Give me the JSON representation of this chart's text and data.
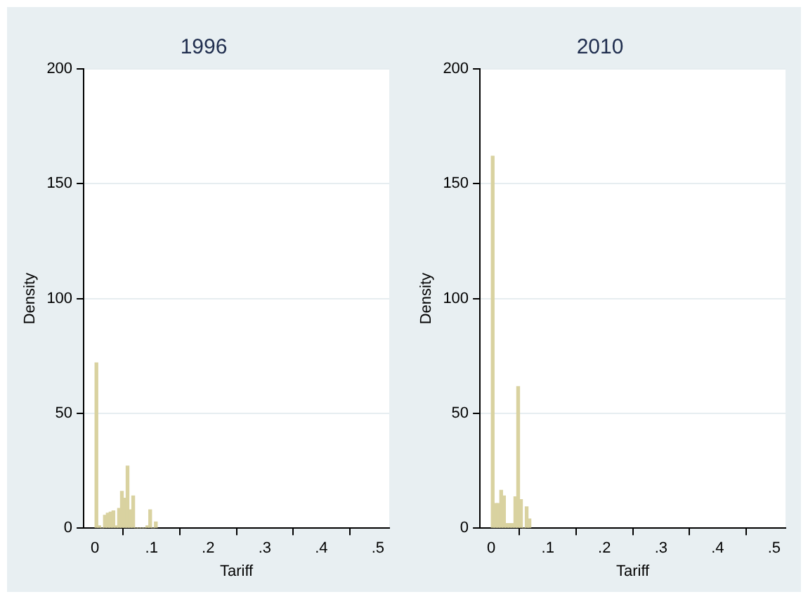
{
  "chart_data": [
    {
      "type": "histogram",
      "title": "1996",
      "xlabel": "Tariff",
      "ylabel": "Density",
      "color": "#d9d2a0",
      "bins": [
        0,
        0.005,
        0.01,
        0.015,
        0.02,
        0.025,
        0.03,
        0.035,
        0.04,
        0.045,
        0.05,
        0.055,
        0.06,
        0.065,
        0.07,
        0.075,
        0.08,
        0.085,
        0.09,
        0.095,
        0.1,
        0.105,
        0.11
      ],
      "values": [
        72,
        1,
        0,
        5.6,
        6.5,
        7,
        7.5,
        1,
        8.6,
        16,
        13,
        27,
        8,
        14,
        0,
        0,
        0,
        0,
        1,
        8,
        0,
        2.7
      ],
      "xlim": [
        -0.02,
        0.52
      ],
      "xticks": [
        0,
        {
          "value": 0.1,
          "label": ".1"
        },
        {
          "value": 0.2,
          "label": ".2"
        },
        {
          "value": 0.3,
          "label": ".3"
        },
        {
          "value": 0.4,
          "label": ".4"
        },
        {
          "value": 0.5,
          "label": ".5"
        }
      ],
      "ylim": [
        0,
        200
      ],
      "yticks": [
        0,
        50,
        100,
        150,
        200
      ],
      "grid": "y",
      "legend": false
    },
    {
      "type": "histogram",
      "title": "2010",
      "xlabel": "Tariff",
      "ylabel": "Density",
      "color": "#d9d2a0",
      "bins": [
        0,
        0.005,
        0.01,
        0.015,
        0.02,
        0.025,
        0.03,
        0.035,
        0.04,
        0.045,
        0.05,
        0.055,
        0.06,
        0.065,
        0.07
      ],
      "values": [
        162,
        10.7,
        10.7,
        16.5,
        14,
        2,
        2,
        2,
        13.6,
        61.6,
        12.4,
        0,
        9.3,
        4
      ],
      "xlim": [
        -0.02,
        0.52
      ],
      "xticks": [
        0,
        {
          "value": 0.1,
          "label": ".1"
        },
        {
          "value": 0.2,
          "label": ".2"
        },
        {
          "value": 0.3,
          "label": ".3"
        },
        {
          "value": 0.4,
          "label": ".4"
        },
        {
          "value": 0.5,
          "label": ".5"
        }
      ],
      "ylim": [
        0,
        200
      ],
      "yticks": [
        0,
        50,
        100,
        150,
        200
      ],
      "grid": "y",
      "legend": false
    }
  ]
}
